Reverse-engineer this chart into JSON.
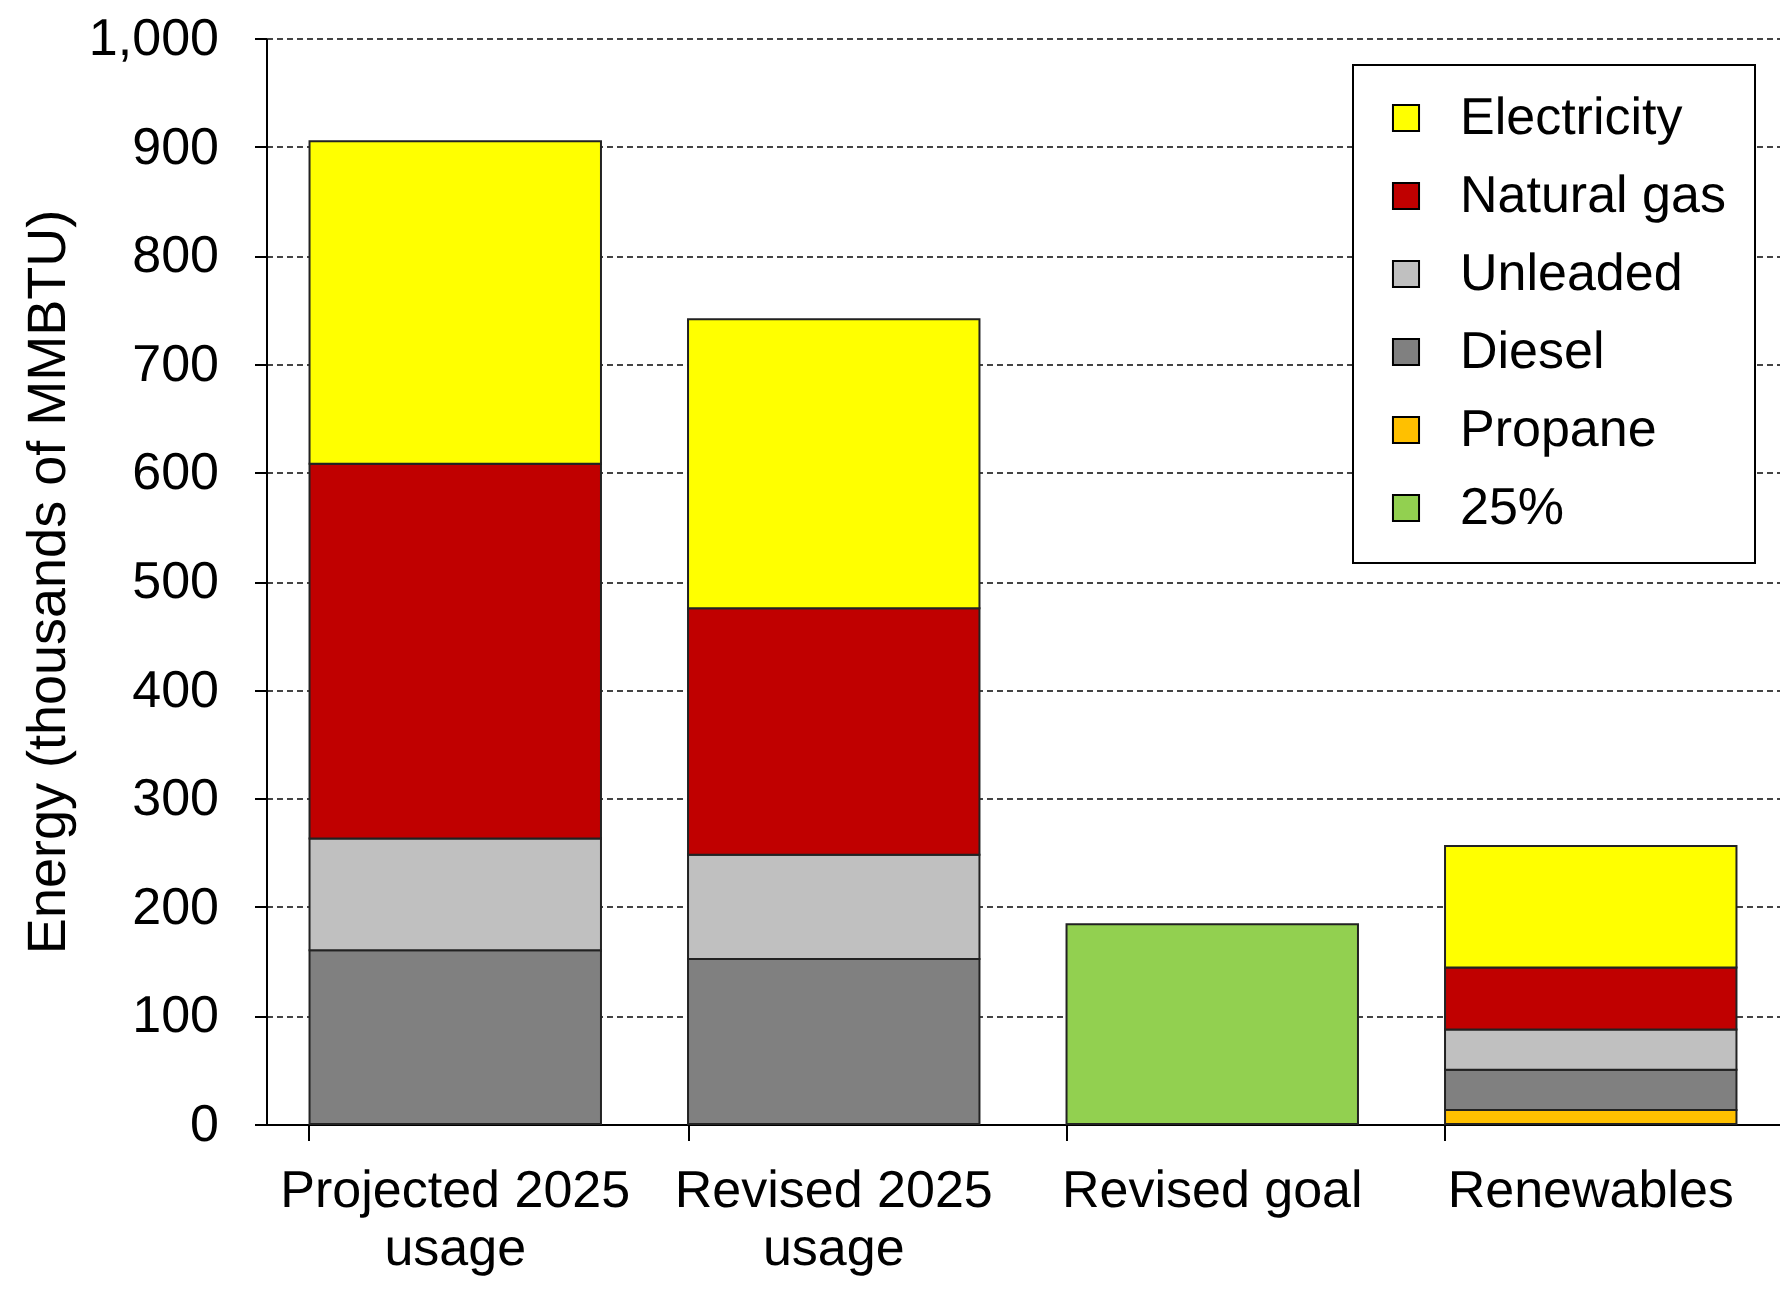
{
  "chart_data": {
    "type": "bar",
    "ylabel": "Energy (thousands of MMBTU)",
    "categories": [
      "Projected 2025 usage",
      "Revised 2025 usage",
      "Revised goal",
      "Renewables"
    ],
    "series": [
      {
        "name": "25%",
        "color": "#92d050",
        "values": [
          null,
          null,
          184,
          null
        ]
      },
      {
        "name": "Propane",
        "color": "#ffc000",
        "values": [
          null,
          null,
          null,
          13
        ]
      },
      {
        "name": "Diesel",
        "color": "#808080",
        "values": [
          160,
          152,
          null,
          37
        ]
      },
      {
        "name": "Unleaded",
        "color": "#c0c0c0",
        "values": [
          103,
          96,
          null,
          37
        ]
      },
      {
        "name": "Natural gas",
        "color": "#c00000",
        "values": [
          345,
          227,
          null,
          57
        ]
      },
      {
        "name": "Electricity",
        "color": "#ffff00",
        "values": [
          297,
          266,
          null,
          112
        ]
      }
    ],
    "stacked": true,
    "ylim": [
      0,
      1000
    ],
    "yticks": [
      0,
      100,
      200,
      300,
      400,
      500,
      600,
      700,
      800,
      900,
      {
        "value": 1000,
        "label": "1,000"
      }
    ],
    "grid": "y",
    "legend": "top right"
  }
}
